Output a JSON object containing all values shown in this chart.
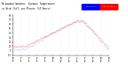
{
  "title": "Milwaukee Weather  Outdoor Temperature vs Wind Chill per Minute (24 Hours)",
  "bg_color": "#ffffff",
  "outdoor_temp_color": "#ff0000",
  "wind_chill_color": "#0000ff",
  "legend_outdoor": "Outdoor Temp",
  "legend_wind": "Wind Chill",
  "ylim": [
    -10,
    80
  ],
  "xlim": [
    0,
    1440
  ],
  "yticks": [
    -10,
    0,
    10,
    20,
    30,
    40,
    50,
    60,
    70,
    80
  ],
  "xtick_interval": 120,
  "dot_size": 0.15,
  "title_fontsize": 2.2,
  "tick_fontsize": 2.0
}
